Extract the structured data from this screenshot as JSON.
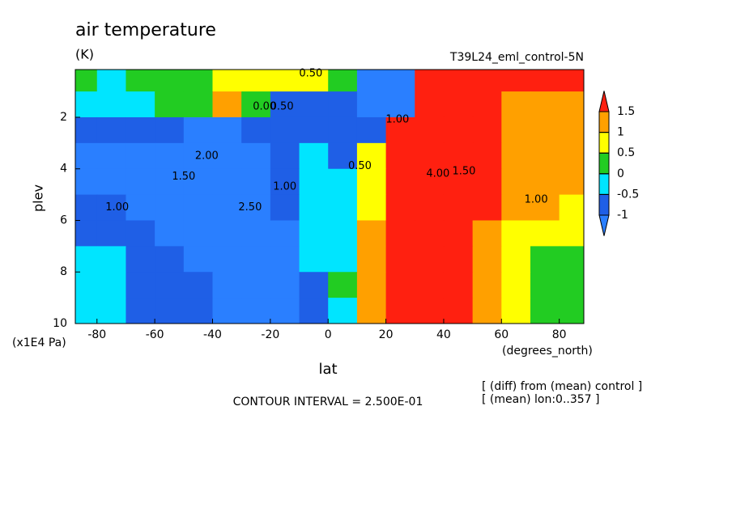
{
  "chart_data": {
    "type": "contour",
    "title": "air temperature",
    "units": "(K)",
    "dataset": "T39L24_eml_control-5N",
    "x_label": "lat",
    "x_units": "(degrees_north)",
    "y_label": "plev",
    "y_units": "(x1E4 Pa)",
    "contour_interval": "CONTOUR INTERVAL = 2.500E-01",
    "notes": [
      "[ (diff) from (mean) control ]",
      "[ (mean) lon:0..357 ]"
    ],
    "xlim": [
      -87.5,
      88.5
    ],
    "ylim": [
      10,
      0.15
    ],
    "xticks": [
      -80,
      -60,
      -40,
      -20,
      0,
      20,
      40,
      60,
      80
    ],
    "yticks": [
      2,
      4,
      6,
      8,
      10
    ],
    "lat": [
      -85,
      -75,
      -65,
      -55,
      -45,
      -35,
      -25,
      -15,
      -5,
      5,
      15,
      25,
      35,
      45,
      55,
      65,
      75,
      85
    ],
    "plev": [
      0.5,
      1.5,
      2.5,
      3.5,
      4.5,
      5.5,
      6.5,
      7.5,
      8.5,
      9.5
    ],
    "z": [
      [
        0.1,
        -0.2,
        0.2,
        0.1,
        0.2,
        0.6,
        0.7,
        0.6,
        0.6,
        0.3,
        -1.2,
        -2.5,
        2.0,
        2.5,
        2.5,
        2.0,
        1.8,
        1.8
      ],
      [
        -0.3,
        -0.4,
        -0.3,
        0.1,
        0.3,
        1.2,
        0.2,
        -0.7,
        -0.9,
        -0.8,
        -1.5,
        -2.0,
        1.5,
        2.0,
        1.8,
        1.3,
        1.2,
        1.3
      ],
      [
        -0.8,
        -0.9,
        -1.0,
        -0.9,
        -1.2,
        -1.5,
        -0.8,
        -0.8,
        -0.6,
        -0.9,
        -0.6,
        2.5,
        3.0,
        2.0,
        1.6,
        1.2,
        1.1,
        1.2
      ],
      [
        -1.2,
        -1.2,
        -1.2,
        -1.3,
        -1.8,
        -2.3,
        -1.6,
        -0.8,
        -0.4,
        -0.6,
        0.5,
        2.2,
        3.6,
        2.3,
        1.6,
        1.2,
        1.1,
        1.3
      ],
      [
        -1.1,
        -1.2,
        -1.3,
        -1.4,
        -1.8,
        -2.6,
        -2.0,
        -0.8,
        -0.4,
        -0.5,
        0.7,
        2.0,
        3.5,
        2.4,
        1.8,
        1.2,
        1.2,
        1.1
      ],
      [
        -1.0,
        -1.0,
        -1.1,
        -1.2,
        -1.6,
        -2.4,
        -2.0,
        -0.9,
        -0.3,
        -0.4,
        0.9,
        2.0,
        3.2,
        2.2,
        1.6,
        1.1,
        1.0,
        0.9
      ],
      [
        -0.6,
        -0.7,
        -0.9,
        -1.1,
        -1.3,
        -2.0,
        -1.9,
        -1.2,
        -0.4,
        -0.2,
        1.0,
        2.0,
        2.8,
        2.0,
        1.3,
        0.8,
        0.6,
        0.5
      ],
      [
        -0.4,
        -0.5,
        -0.6,
        -0.8,
        -1.1,
        -1.6,
        -1.7,
        -1.3,
        -0.3,
        -0.1,
        1.2,
        2.0,
        2.4,
        1.8,
        1.1,
        0.7,
        0.3,
        0.2
      ],
      [
        -0.4,
        -0.5,
        -0.6,
        -0.7,
        -1.0,
        -1.4,
        -1.6,
        -1.4,
        -0.6,
        0.0,
        1.3,
        2.0,
        2.2,
        1.7,
        1.0,
        0.6,
        0.3,
        0.3
      ],
      [
        -0.4,
        -0.4,
        -0.6,
        -0.7,
        -1.0,
        -1.3,
        -1.5,
        -1.3,
        -0.9,
        -0.1,
        1.4,
        1.9,
        2.0,
        1.6,
        1.0,
        0.6,
        0.3,
        0.3
      ]
    ],
    "levels": [
      -1,
      -0.5,
      0,
      0.5,
      1,
      1.5
    ],
    "colors": [
      "#2a7fff",
      "#1f5fe6",
      "#00e5ff",
      "#22cc22",
      "#ffff00",
      "#ffa000",
      "#ff2010"
    ],
    "contour_labels": [
      {
        "text": "0.50",
        "lat": -6,
        "plev": 0.3
      },
      {
        "text": "0.00",
        "lat": -22,
        "plev": 1.6
      },
      {
        "text": "0.50",
        "lat": -16,
        "plev": 1.6
      },
      {
        "text": "1.00",
        "lat": 24,
        "plev": 2.1
      },
      {
        "text": "2.00",
        "lat": -42,
        "plev": 3.5
      },
      {
        "text": "1.50",
        "lat": -50,
        "plev": 4.3
      },
      {
        "text": "2.50",
        "lat": -27,
        "plev": 5.5
      },
      {
        "text": "1.00",
        "lat": -15,
        "plev": 4.7
      },
      {
        "text": "1.00",
        "lat": -73,
        "plev": 5.5
      },
      {
        "text": "0.50",
        "lat": 11,
        "plev": 3.9
      },
      {
        "text": "4.00",
        "lat": 38,
        "plev": 4.2
      },
      {
        "text": "1.50",
        "lat": 47,
        "plev": 4.1
      },
      {
        "text": "1.00",
        "lat": 72,
        "plev": 5.2
      }
    ]
  }
}
